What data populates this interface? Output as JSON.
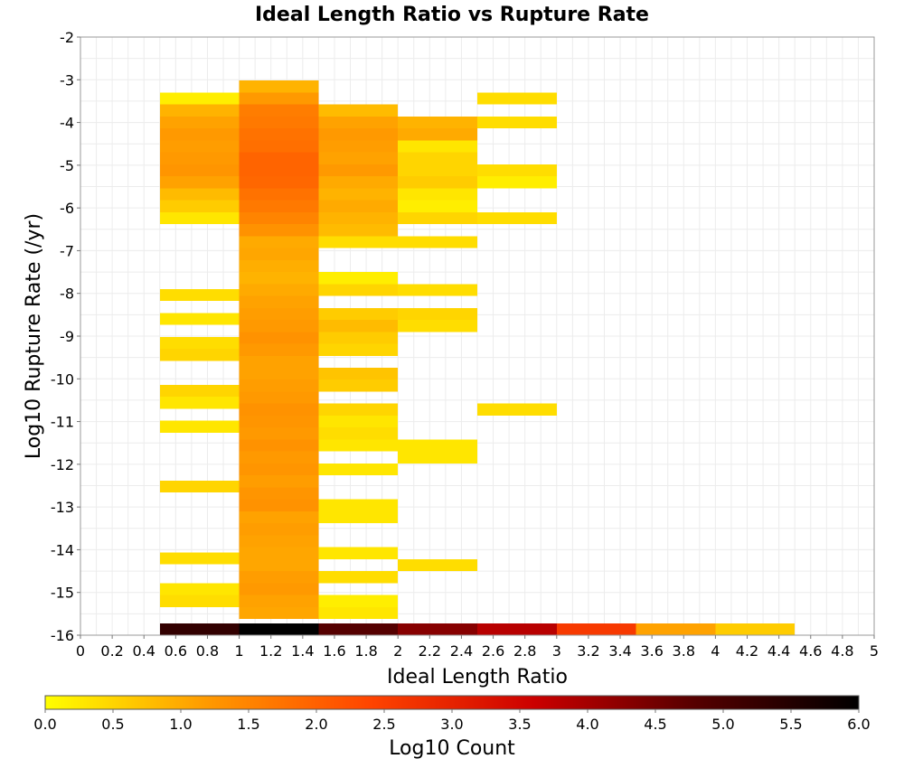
{
  "chart_data": {
    "type": "heatmap",
    "title": "Ideal Length Ratio vs Rupture Rate",
    "xlabel": "Ideal Length Ratio",
    "ylabel": "Log10 Rupture Rate (/yr)",
    "xlim": [
      0,
      5
    ],
    "ylim": [
      -16,
      -2
    ],
    "x_ticks": [
      "0",
      "0.2",
      "0.4",
      "0.6",
      "0.8",
      "1",
      "1.2",
      "1.4",
      "1.6",
      "1.8",
      "2",
      "2.2",
      "2.4",
      "2.6",
      "2.8",
      "3",
      "3.2",
      "3.4",
      "3.6",
      "3.8",
      "4",
      "4.2",
      "4.4",
      "4.6",
      "4.8",
      "5"
    ],
    "y_ticks": [
      "-2",
      "-3",
      "-4",
      "-5",
      "-6",
      "-7",
      "-8",
      "-9",
      "-10",
      "-11",
      "-12",
      "-13",
      "-14",
      "-15",
      "-16"
    ],
    "grid": true,
    "bin_width_x": 0.5,
    "bin_height_y": 0.28,
    "colorbar": {
      "label": "Log10 Count",
      "range": [
        0,
        6
      ],
      "ticks": [
        "0.0",
        "0.5",
        "1.0",
        "1.5",
        "2.0",
        "2.5",
        "3.0",
        "3.5",
        "4.0",
        "4.5",
        "5.0",
        "5.5",
        "6.0"
      ],
      "placement": "bottom",
      "colors": [
        "#ffff00",
        "#ff9900",
        "#ff4400",
        "#cc0000",
        "#550000",
        "#000000"
      ]
    },
    "columns": [
      {
        "x": [
          0.5,
          1.0
        ],
        "cells": [
          [
            -3.58,
            0.2
          ],
          [
            -3.86,
            0.9
          ],
          [
            -4.14,
            1.1
          ],
          [
            -4.42,
            1.2
          ],
          [
            -4.7,
            1.15
          ],
          [
            -4.98,
            1.2
          ],
          [
            -5.26,
            1.25
          ],
          [
            -5.54,
            1.1
          ],
          [
            -5.82,
            0.8
          ],
          [
            -6.1,
            0.6
          ],
          [
            -6.38,
            0.3
          ],
          [
            -8.18,
            0.4
          ],
          [
            -8.74,
            0.3
          ],
          [
            -9.3,
            0.4
          ],
          [
            -9.58,
            0.5
          ],
          [
            -10.42,
            0.5
          ],
          [
            -10.7,
            0.3
          ],
          [
            -11.26,
            0.3
          ],
          [
            -12.66,
            0.5
          ],
          [
            -14.34,
            0.4
          ],
          [
            -15.06,
            0.3
          ],
          [
            -15.34,
            0.4
          ],
          [
            -16.0,
            5.3
          ]
        ]
      },
      {
        "x": [
          1.0,
          1.5
        ],
        "cells": [
          [
            -3.3,
            0.9
          ],
          [
            -3.58,
            1.2
          ],
          [
            -3.86,
            1.6
          ],
          [
            -4.14,
            1.65
          ],
          [
            -4.42,
            1.75
          ],
          [
            -4.7,
            1.8
          ],
          [
            -4.98,
            1.95
          ],
          [
            -5.26,
            1.95
          ],
          [
            -5.54,
            1.9
          ],
          [
            -5.82,
            1.75
          ],
          [
            -6.1,
            1.65
          ],
          [
            -6.38,
            1.5
          ],
          [
            -6.66,
            1.3
          ],
          [
            -6.94,
            1.0
          ],
          [
            -7.22,
            1.05
          ],
          [
            -7.5,
            0.95
          ],
          [
            -7.78,
            0.9
          ],
          [
            -8.06,
            1.0
          ],
          [
            -8.34,
            1.1
          ],
          [
            -8.62,
            1.15
          ],
          [
            -8.9,
            1.2
          ],
          [
            -9.18,
            1.3
          ],
          [
            -9.46,
            1.2
          ],
          [
            -9.74,
            1.1
          ],
          [
            -10.02,
            1.1
          ],
          [
            -10.3,
            1.15
          ],
          [
            -10.58,
            1.2
          ],
          [
            -10.86,
            1.3
          ],
          [
            -11.14,
            1.25
          ],
          [
            -11.42,
            1.2
          ],
          [
            -11.7,
            1.3
          ],
          [
            -11.98,
            1.2
          ],
          [
            -12.26,
            1.25
          ],
          [
            -12.54,
            1.15
          ],
          [
            -12.82,
            1.25
          ],
          [
            -13.1,
            1.3
          ],
          [
            -13.38,
            1.1
          ],
          [
            -13.66,
            1.15
          ],
          [
            -13.94,
            1.1
          ],
          [
            -14.22,
            1.05
          ],
          [
            -14.5,
            1.05
          ],
          [
            -14.78,
            1.15
          ],
          [
            -15.06,
            1.2
          ],
          [
            -15.34,
            1.1
          ],
          [
            -15.62,
            1.05
          ],
          [
            -16.0,
            6.0
          ]
        ]
      },
      {
        "x": [
          1.5,
          2.0
        ],
        "cells": [
          [
            -3.86,
            0.8
          ],
          [
            -4.14,
            1.1
          ],
          [
            -4.42,
            1.2
          ],
          [
            -4.7,
            1.15
          ],
          [
            -4.98,
            1.1
          ],
          [
            -5.26,
            1.2
          ],
          [
            -5.54,
            1.0
          ],
          [
            -5.82,
            0.9
          ],
          [
            -6.1,
            1.0
          ],
          [
            -6.38,
            0.9
          ],
          [
            -6.66,
            0.8
          ],
          [
            -6.94,
            0.4
          ],
          [
            -7.78,
            0.2
          ],
          [
            -8.06,
            0.5
          ],
          [
            -8.62,
            0.6
          ],
          [
            -8.9,
            0.8
          ],
          [
            -9.18,
            0.6
          ],
          [
            -9.46,
            0.5
          ],
          [
            -10.02,
            0.7
          ],
          [
            -10.3,
            0.6
          ],
          [
            -10.86,
            0.5
          ],
          [
            -11.14,
            0.3
          ],
          [
            -11.42,
            0.4
          ],
          [
            -11.7,
            0.3
          ],
          [
            -12.26,
            0.3
          ],
          [
            -13.1,
            0.3
          ],
          [
            -13.38,
            0.3
          ],
          [
            -14.22,
            0.3
          ],
          [
            -14.78,
            0.4
          ],
          [
            -15.34,
            0.2
          ],
          [
            -15.62,
            0.3
          ],
          [
            -16.0,
            4.8
          ]
        ]
      },
      {
        "x": [
          2.0,
          2.5
        ],
        "cells": [
          [
            -4.14,
            0.9
          ],
          [
            -4.42,
            1.0
          ],
          [
            -4.7,
            0.3
          ],
          [
            -4.98,
            0.5
          ],
          [
            -5.26,
            0.5
          ],
          [
            -5.54,
            0.6
          ],
          [
            -5.82,
            0.3
          ],
          [
            -6.1,
            0.2
          ],
          [
            -6.38,
            0.5
          ],
          [
            -6.94,
            0.4
          ],
          [
            -8.06,
            0.4
          ],
          [
            -8.62,
            0.5
          ],
          [
            -8.9,
            0.4
          ],
          [
            -11.7,
            0.3
          ],
          [
            -11.98,
            0.3
          ],
          [
            -14.5,
            0.4
          ],
          [
            -16.0,
            4.3
          ]
        ]
      },
      {
        "x": [
          2.5,
          3.0
        ],
        "cells": [
          [
            -3.58,
            0.4
          ],
          [
            -4.14,
            0.4
          ],
          [
            -5.26,
            0.4
          ],
          [
            -5.54,
            0.2
          ],
          [
            -6.38,
            0.4
          ],
          [
            -10.86,
            0.4
          ],
          [
            -16.0,
            3.8
          ]
        ]
      },
      {
        "x": [
          3.0,
          3.5
        ],
        "cells": [
          [
            -16.0,
            2.6
          ]
        ]
      },
      {
        "x": [
          3.5,
          4.0
        ],
        "cells": [
          [
            -16.0,
            1.1
          ]
        ]
      },
      {
        "x": [
          4.0,
          4.5
        ],
        "cells": [
          [
            -16.0,
            0.6
          ]
        ]
      }
    ]
  }
}
